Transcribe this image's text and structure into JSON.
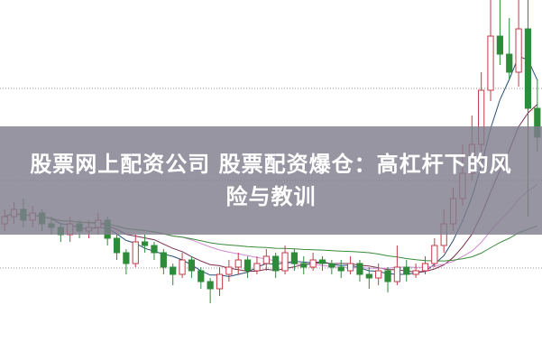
{
  "headline": {
    "line1": "股票网上配资公司 股票配资爆仓：高杠杆下的风",
    "line2": "险与教训"
  },
  "chart_data": {
    "type": "candlestick",
    "title": "",
    "xlabel": "",
    "ylabel": "",
    "ylim": [
      0,
      100
    ],
    "grid": "dotted horizontal",
    "colors": {
      "up": "#c23b4a",
      "down": "#2e8b3a",
      "ma5": "#2a4f7a",
      "ma10": "#7a2f4f",
      "ma20": "#d08ad0",
      "ma60": "#3a8a3a",
      "banner": "#807e8e"
    },
    "moving_averages": [
      5,
      10,
      20,
      40
    ],
    "ohlc": [
      [
        38,
        42,
        36,
        40
      ],
      [
        40,
        44,
        38,
        42
      ],
      [
        42,
        45,
        37,
        39
      ],
      [
        39,
        43,
        37,
        41
      ],
      [
        41,
        42,
        36,
        38
      ],
      [
        38,
        40,
        35,
        37
      ],
      [
        37,
        38,
        33,
        35
      ],
      [
        35,
        40,
        33,
        38
      ],
      [
        38,
        39,
        34,
        36
      ],
      [
        36,
        39,
        34,
        37
      ],
      [
        37,
        41,
        35,
        39
      ],
      [
        39,
        40,
        32,
        34
      ],
      [
        34,
        35,
        28,
        30
      ],
      [
        30,
        31,
        24,
        27
      ],
      [
        27,
        35,
        26,
        33
      ],
      [
        33,
        35,
        30,
        32
      ],
      [
        32,
        33,
        28,
        30
      ],
      [
        30,
        31,
        24,
        26
      ],
      [
        26,
        27,
        21,
        24
      ],
      [
        24,
        30,
        23,
        28
      ],
      [
        28,
        29,
        23,
        25
      ],
      [
        25,
        26,
        20,
        22
      ],
      [
        22,
        23,
        16,
        20
      ],
      [
        20,
        26,
        18,
        24
      ],
      [
        24,
        28,
        22,
        26
      ],
      [
        26,
        30,
        24,
        28
      ],
      [
        28,
        29,
        23,
        25
      ],
      [
        25,
        29,
        24,
        27
      ],
      [
        27,
        31,
        25,
        29
      ],
      [
        29,
        30,
        23,
        25
      ],
      [
        25,
        32,
        24,
        30
      ],
      [
        30,
        31,
        25,
        27
      ],
      [
        27,
        29,
        24,
        26
      ],
      [
        26,
        30,
        25,
        28
      ],
      [
        28,
        29,
        25,
        27
      ],
      [
        27,
        28,
        24,
        26
      ],
      [
        26,
        28,
        23,
        25
      ],
      [
        25,
        29,
        24,
        27
      ],
      [
        27,
        28,
        22,
        24
      ],
      [
        24,
        26,
        20,
        23
      ],
      [
        23,
        27,
        21,
        25
      ],
      [
        25,
        26,
        19,
        22
      ],
      [
        22,
        32,
        21,
        26
      ],
      [
        26,
        28,
        22,
        24
      ],
      [
        24,
        27,
        23,
        25
      ],
      [
        25,
        29,
        24,
        27
      ],
      [
        27,
        34,
        26,
        32
      ],
      [
        32,
        42,
        30,
        38
      ],
      [
        38,
        48,
        36,
        45
      ],
      [
        45,
        60,
        43,
        52
      ],
      [
        52,
        68,
        50,
        60
      ],
      [
        60,
        80,
        58,
        75
      ],
      [
        75,
        100,
        72,
        90
      ],
      [
        90,
        102,
        82,
        85
      ],
      [
        85,
        95,
        78,
        80
      ],
      [
        80,
        100,
        76,
        92
      ],
      [
        92,
        100,
        40,
        70
      ],
      [
        70,
        78,
        58,
        62
      ]
    ]
  }
}
